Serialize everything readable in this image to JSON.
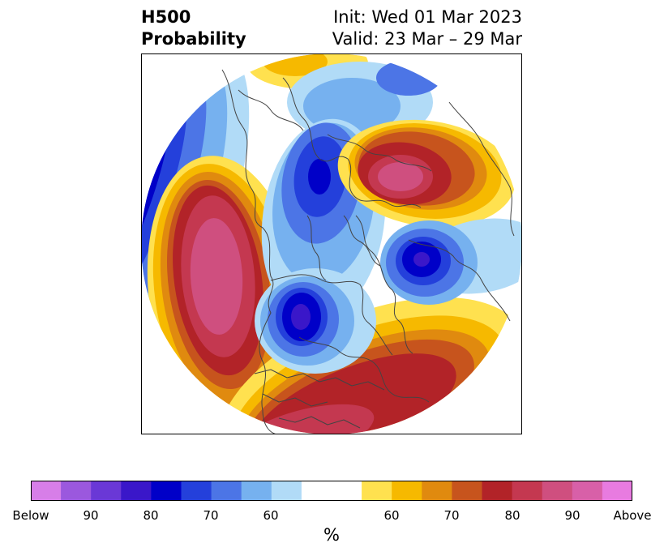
{
  "header": {
    "title_line1": "H500",
    "title_line2": "Probability",
    "init_text": "Init: Wed 01 Mar 2023",
    "valid_text": "Valid: 23 Mar – 29 Mar"
  },
  "colorbar": {
    "unit": "%",
    "tick_labels": [
      "Below",
      "90",
      "80",
      "70",
      "60",
      "60",
      "70",
      "80",
      "90",
      "Above"
    ],
    "colors": [
      "#d77ee8",
      "#9b58de",
      "#6a38d6",
      "#3a17c9",
      "#0000c8",
      "#2440db",
      "#4c75e6",
      "#76b1ef",
      "#b1dbf7",
      "#ffffff",
      "#ffffff",
      "#ffe14f",
      "#f6b900",
      "#e08a0f",
      "#c7541d",
      "#b22328",
      "#c43850",
      "#cf4f7f",
      "#d860a8",
      "#e87be0"
    ]
  },
  "map": {
    "projection": "north-polar-stereographic",
    "colors": {
      "coast": "#444444",
      "blue_dark": "#0000c8",
      "red_dark": "#b22328",
      "pink": "#cf4f7f"
    }
  }
}
